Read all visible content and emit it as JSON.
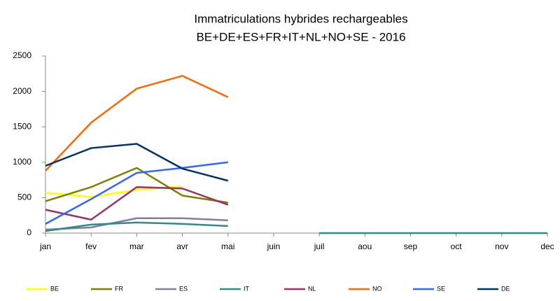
{
  "chart_data": {
    "type": "line",
    "title": [
      "Immatriculations hybrides rechargeables",
      "BE+DE+ES+FR+IT+NL+NO+SE  - 2016"
    ],
    "categories": [
      "jan",
      "fev",
      "mar",
      "avr",
      "mai",
      "juin",
      "juil",
      "aou",
      "sep",
      "oct",
      "nov",
      "dec"
    ],
    "ylim": [
      0,
      2500
    ],
    "yticks": [
      0,
      500,
      1000,
      1500,
      2000,
      2500
    ],
    "grid": false,
    "legend": "bottom",
    "series": [
      {
        "name": "BE",
        "color": "#ffff00",
        "values": [
          570,
          510,
          610,
          660,
          null,
          null,
          null,
          null,
          null,
          null,
          null,
          null
        ]
      },
      {
        "name": "FR",
        "color": "#7f7f00",
        "values": [
          450,
          650,
          920,
          530,
          430,
          null,
          null,
          null,
          null,
          null,
          null,
          null
        ]
      },
      {
        "name": "ES",
        "color": "#7f7fa0",
        "values": [
          50,
          80,
          210,
          210,
          180,
          null,
          null,
          null,
          null,
          null,
          null,
          null
        ]
      },
      {
        "name": "IT",
        "color": "#2e8b8b",
        "values": [
          30,
          120,
          150,
          130,
          100,
          null,
          0,
          0,
          0,
          0,
          0,
          0
        ]
      },
      {
        "name": "NL",
        "color": "#993366",
        "values": [
          330,
          190,
          650,
          630,
          400,
          null,
          null,
          null,
          null,
          null,
          null,
          null
        ]
      },
      {
        "name": "NO",
        "color": "#ff6600",
        "values": [
          880,
          1560,
          2040,
          2220,
          1920,
          null,
          null,
          null,
          null,
          null,
          null,
          null
        ]
      },
      {
        "name": "SE",
        "color": "#3366ff",
        "values": [
          130,
          480,
          850,
          920,
          1000,
          null,
          null,
          null,
          null,
          null,
          null,
          null
        ]
      },
      {
        "name": "DE",
        "color": "#003366",
        "values": [
          950,
          1200,
          1260,
          910,
          740,
          null,
          null,
          null,
          null,
          null,
          null,
          null
        ]
      }
    ]
  }
}
